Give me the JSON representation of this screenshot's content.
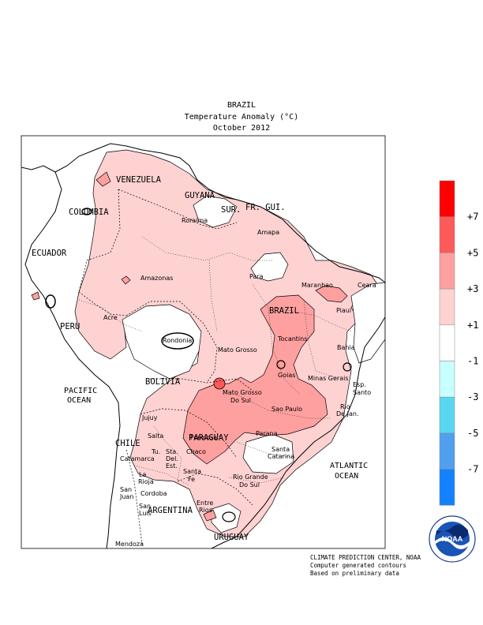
{
  "header": {
    "title": "BRAZIL",
    "subtitle": "Temperature Anomaly (°C)",
    "period": "October 2012"
  },
  "legend": {
    "bins": [
      {
        "color": "#ff0000"
      },
      {
        "color": "#ff5a5a"
      },
      {
        "color": "#ffa0a0"
      },
      {
        "color": "#ffd2d2"
      },
      {
        "color": "#ffffff"
      },
      {
        "color": "#c8ffff"
      },
      {
        "color": "#5ad7f0"
      },
      {
        "color": "#50a0f0"
      },
      {
        "color": "#1482ff"
      }
    ],
    "labels": [
      "+7",
      "+5",
      "+3",
      "+1",
      "-1",
      "-3",
      "-5",
      "-7"
    ]
  },
  "countries": {
    "venezuela": "VENEZUELA",
    "guyana": "GUYANA",
    "suriname": "SUR.",
    "french_guiana": "FR. GUI.",
    "colombia": "COLOMBIA",
    "ecuador": "ECUADOR",
    "peru": "PERU",
    "brazil": "BRAZIL",
    "bolivia": "BOLIVIA",
    "paraguay": "PARAGUAY",
    "chile": "CHILE",
    "argentina": "ARGENTINA",
    "uruguay": "URUGUAY"
  },
  "oceans": {
    "pacific_1": "PACIFIC",
    "pacific_2": "OCEAN",
    "atlantic_1": "ATLANTIC",
    "atlantic_2": "OCEAN"
  },
  "states": {
    "roraima": "Roraima",
    "amapa": "Amapa",
    "amazonas": "Amazonas",
    "para": "Para",
    "maranhao": "Maranhao",
    "ceara": "Ceara",
    "piaui": "Piaui",
    "acre": "Acre",
    "rondonia": "Rondonia",
    "tocantins": "Tocantins",
    "mato_grosso": "Mato Grosso",
    "bahia": "Bahia",
    "goias": "Goias",
    "minas_gerais": "Minas Gerais",
    "esp_santo_1": "Esp.",
    "esp_santo_2": "Santo",
    "mgds_1": "Mato Grosso",
    "mgds_2": "Do Sul",
    "sao_paulo": "Sao Paulo",
    "rio_1": "Rio",
    "rio_2": "De Jan.",
    "parana": "Parana",
    "santa_catarina_1": "Santa",
    "santa_catarina_2": "Catarina",
    "rgds_1": "Rio Grande",
    "rgds_2": "Do Sul",
    "jujuy": "Jujuy",
    "salta": "Salta",
    "formosa": "Formosa",
    "chaco": "Chaco",
    "tucuman": "Tu.",
    "sde_1": "Sta.",
    "sde_2": "Del.",
    "sde_3": "Est.",
    "catamarca": "Catamarca",
    "la_rioja_1": "La",
    "la_rioja_2": "Rioja",
    "santa_fe_1": "Santa",
    "santa_fe_2": "Fe",
    "san_juan_1": "San",
    "san_juan_2": "Juan",
    "cordoba": "Cordoba",
    "san_luis_1": "San",
    "san_luis_2": "Luis",
    "entre_rios_1": "Entre",
    "entre_rios_2": "Rios",
    "mendoza": "Mendoza"
  },
  "credits": {
    "line1": "CLIMATE PREDICTION CENTER, NOAA",
    "line2": "Computer generated contours",
    "line3": "Based on preliminary data"
  },
  "logo": {
    "text": "NOAA",
    "ring_top": "NATIONAL OCEANIC AND ATMOSPHERIC ADMINISTRATION",
    "ring_bottom": "U.S. DEPARTMENT OF COMMERCE"
  }
}
